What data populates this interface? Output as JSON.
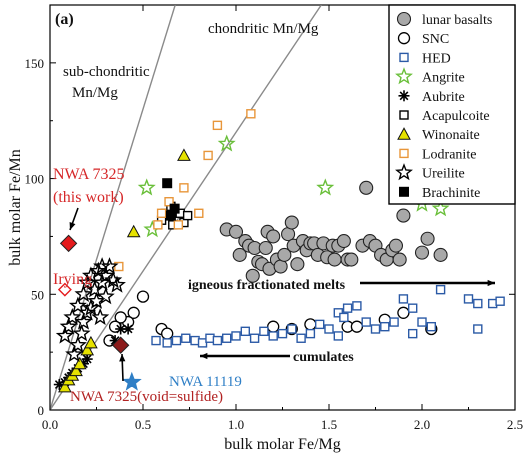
{
  "chart_data": {
    "type": "scatter",
    "panel_label": "(a)",
    "xlabel": "bulk molar Fe/Mg",
    "ylabel": "bulk molar Fe/Mn",
    "xlim": [
      0,
      2.5
    ],
    "ylim": [
      0,
      175
    ],
    "xticks": [
      "0.0",
      "0.5",
      "1.0",
      "1.5",
      "2.0",
      "2.5"
    ],
    "yticks": [
      "0",
      "50",
      "100",
      "150"
    ],
    "grid": false,
    "legend_position": "top-right",
    "reference_lines": [
      {
        "label": "chondritic Mn/Mg",
        "slope": 120
      },
      {
        "label": "sub-chondritic Mn/Mg",
        "slope": 260
      }
    ],
    "annotations": [
      {
        "text": "chondritic Mn/Mg"
      },
      {
        "text": "sub-chondritic"
      },
      {
        "text": "Mn/Mg"
      },
      {
        "text": "NWA 7325"
      },
      {
        "text": "(this work)"
      },
      {
        "text": "Irying"
      },
      {
        "text": "NWA 7325(void=sulfide)"
      },
      {
        "text": "NWA 11119"
      },
      {
        "text": "igneous fractionated melts"
      },
      {
        "text": "cumulates"
      }
    ],
    "series": [
      {
        "name": "lunar basalts",
        "marker": "circle-filled",
        "color": "#a8a8a8",
        "points": [
          [
            0.95,
            78
          ],
          [
            1.0,
            77
          ],
          [
            1.02,
            67
          ],
          [
            1.05,
            73
          ],
          [
            1.07,
            71
          ],
          [
            1.09,
            58
          ],
          [
            1.1,
            70
          ],
          [
            1.12,
            64
          ],
          [
            1.14,
            63
          ],
          [
            1.16,
            70
          ],
          [
            1.17,
            77
          ],
          [
            1.18,
            61
          ],
          [
            1.2,
            75
          ],
          [
            1.22,
            65
          ],
          [
            1.24,
            62
          ],
          [
            1.26,
            67
          ],
          [
            1.28,
            76
          ],
          [
            1.3,
            81
          ],
          [
            1.31,
            71
          ],
          [
            1.33,
            63
          ],
          [
            1.36,
            73
          ],
          [
            1.38,
            69
          ],
          [
            1.4,
            72
          ],
          [
            1.42,
            72
          ],
          [
            1.44,
            67
          ],
          [
            1.47,
            72
          ],
          [
            1.49,
            66
          ],
          [
            1.52,
            71
          ],
          [
            1.53,
            65
          ],
          [
            1.55,
            71
          ],
          [
            1.58,
            73
          ],
          [
            1.6,
            65
          ],
          [
            1.62,
            65
          ],
          [
            1.68,
            71
          ],
          [
            1.7,
            96
          ],
          [
            1.72,
            73
          ],
          [
            1.75,
            71
          ],
          [
            1.78,
            67
          ],
          [
            1.81,
            65
          ],
          [
            1.84,
            69
          ],
          [
            1.86,
            71
          ],
          [
            1.88,
            65
          ],
          [
            1.9,
            84
          ],
          [
            1.93,
            96
          ],
          [
            2.0,
            68
          ],
          [
            2.03,
            74
          ],
          [
            2.1,
            67
          ]
        ]
      },
      {
        "name": "SNC",
        "marker": "circle-open",
        "color": "#000000",
        "points": [
          [
            0.5,
            49
          ],
          [
            0.45,
            42
          ],
          [
            0.42,
            38
          ],
          [
            0.38,
            40
          ],
          [
            0.35,
            36
          ],
          [
            0.32,
            30
          ],
          [
            0.6,
            35
          ],
          [
            0.63,
            33
          ],
          [
            1.2,
            36
          ],
          [
            1.4,
            37
          ],
          [
            1.6,
            36
          ],
          [
            1.8,
            39
          ],
          [
            1.9,
            42
          ],
          [
            2.05,
            35
          ],
          [
            1.65,
            36
          ],
          [
            1.3,
            35
          ]
        ]
      },
      {
        "name": "HED",
        "marker": "square-open",
        "color": "#2b5aa6",
        "points": [
          [
            0.57,
            30
          ],
          [
            0.63,
            29
          ],
          [
            0.68,
            30
          ],
          [
            0.73,
            31
          ],
          [
            0.78,
            30
          ],
          [
            0.82,
            29
          ],
          [
            0.86,
            31
          ],
          [
            0.9,
            30
          ],
          [
            0.95,
            31
          ],
          [
            1.0,
            32
          ],
          [
            1.05,
            34
          ],
          [
            1.1,
            31
          ],
          [
            1.15,
            34
          ],
          [
            1.2,
            32
          ],
          [
            1.25,
            33
          ],
          [
            1.3,
            35
          ],
          [
            1.35,
            31
          ],
          [
            1.4,
            33
          ],
          [
            1.45,
            37
          ],
          [
            1.5,
            35
          ],
          [
            1.55,
            42
          ],
          [
            1.58,
            40
          ],
          [
            1.6,
            44
          ],
          [
            1.65,
            45
          ],
          [
            1.7,
            38
          ],
          [
            1.75,
            35
          ],
          [
            1.8,
            36
          ],
          [
            1.85,
            38
          ],
          [
            1.9,
            48
          ],
          [
            1.95,
            44
          ],
          [
            2.0,
            38
          ],
          [
            2.05,
            36
          ],
          [
            2.1,
            52
          ],
          [
            2.25,
            48
          ],
          [
            2.3,
            46
          ],
          [
            2.38,
            46
          ],
          [
            2.42,
            47
          ],
          [
            2.3,
            35
          ],
          [
            1.95,
            33
          ],
          [
            1.55,
            32
          ]
        ]
      },
      {
        "name": "Angrite",
        "marker": "star-open",
        "color": "#6abf3a",
        "points": [
          [
            0.52,
            96
          ],
          [
            0.55,
            78
          ],
          [
            0.95,
            115
          ],
          [
            1.48,
            96
          ],
          [
            2.0,
            89
          ],
          [
            2.1,
            87
          ]
        ]
      },
      {
        "name": "Aubrite",
        "marker": "asterisk",
        "color": "#000000",
        "points": [
          [
            0.05,
            11
          ],
          [
            0.08,
            12
          ],
          [
            0.1,
            14
          ],
          [
            0.12,
            16
          ],
          [
            0.15,
            18
          ],
          [
            0.18,
            20
          ],
          [
            0.2,
            22
          ],
          [
            0.38,
            35
          ],
          [
            0.42,
            35
          ],
          [
            0.35,
            30
          ]
        ]
      },
      {
        "name": "Acapulcoite",
        "marker": "square-open",
        "color": "#000000",
        "points": [
          [
            0.6,
            82
          ],
          [
            0.62,
            85
          ],
          [
            0.65,
            88
          ],
          [
            0.7,
            85
          ],
          [
            0.72,
            81
          ],
          [
            0.74,
            84
          ],
          [
            0.66,
            80
          ]
        ]
      },
      {
        "name": "Winonaite",
        "marker": "triangle-filled",
        "color": "#e6e200",
        "points": [
          [
            0.08,
            10
          ],
          [
            0.1,
            13
          ],
          [
            0.12,
            15
          ],
          [
            0.14,
            17
          ],
          [
            0.16,
            20
          ],
          [
            0.2,
            26
          ],
          [
            0.22,
            29
          ],
          [
            0.45,
            77
          ],
          [
            0.72,
            110
          ]
        ]
      },
      {
        "name": "Lodranite",
        "marker": "square-open",
        "color": "#e8963a",
        "points": [
          [
            0.37,
            62
          ],
          [
            0.58,
            80
          ],
          [
            0.6,
            85
          ],
          [
            0.64,
            90
          ],
          [
            0.69,
            80
          ],
          [
            0.72,
            96
          ],
          [
            0.8,
            85
          ],
          [
            0.85,
            110
          ],
          [
            0.9,
            123
          ],
          [
            1.08,
            128
          ]
        ]
      },
      {
        "name": "Ureilite",
        "marker": "star-open",
        "color": "#000000",
        "points": [
          [
            0.08,
            32
          ],
          [
            0.1,
            36
          ],
          [
            0.12,
            40
          ],
          [
            0.15,
            45
          ],
          [
            0.18,
            50
          ],
          [
            0.2,
            55
          ],
          [
            0.22,
            58
          ],
          [
            0.24,
            52
          ],
          [
            0.26,
            60
          ],
          [
            0.28,
            55
          ],
          [
            0.3,
            58
          ],
          [
            0.32,
            62
          ],
          [
            0.34,
            56
          ],
          [
            0.36,
            54
          ],
          [
            0.22,
            44
          ],
          [
            0.25,
            47
          ],
          [
            0.18,
            38
          ],
          [
            0.15,
            28
          ],
          [
            0.13,
            24
          ],
          [
            0.17,
            33
          ],
          [
            0.2,
            42
          ],
          [
            0.28,
            62
          ],
          [
            0.3,
            49
          ],
          [
            0.27,
            40
          ]
        ]
      },
      {
        "name": "Brachinite",
        "marker": "square-filled",
        "color": "#000000",
        "points": [
          [
            0.63,
            98
          ],
          [
            0.65,
            84
          ],
          [
            0.67,
            87
          ]
        ]
      },
      {
        "name": "NWA 7325",
        "marker": "diamond-filled",
        "color": "#e41a1c",
        "points": [
          [
            0.1,
            72
          ]
        ]
      },
      {
        "name": "Irying",
        "marker": "diamond-open",
        "color": "#e41a1c",
        "points": [
          [
            0.08,
            52
          ]
        ]
      },
      {
        "name": "NWA 7325(void=sulfide)",
        "marker": "diamond-filled",
        "color": "#8b1a1a",
        "points": [
          [
            0.38,
            28
          ]
        ]
      },
      {
        "name": "NWA 11119",
        "marker": "star-filled",
        "color": "#2f7fc6",
        "points": [
          [
            0.44,
            12
          ]
        ]
      }
    ],
    "legend": [
      {
        "name": "lunar basalts",
        "marker": "circle-filled",
        "color": "#a8a8a8"
      },
      {
        "name": "SNC",
        "marker": "circle-open",
        "color": "#000000"
      },
      {
        "name": "HED",
        "marker": "square-open",
        "color": "#2b5aa6"
      },
      {
        "name": "Angrite",
        "marker": "star-open",
        "color": "#6abf3a"
      },
      {
        "name": "Aubrite",
        "marker": "asterisk",
        "color": "#000000"
      },
      {
        "name": "Acapulcoite",
        "marker": "square-open",
        "color": "#000000"
      },
      {
        "name": "Winonaite",
        "marker": "triangle-filled",
        "color": "#e6e200"
      },
      {
        "name": "Lodranite",
        "marker": "square-open",
        "color": "#e8963a"
      },
      {
        "name": "Ureilite",
        "marker": "star-open",
        "color": "#000000"
      },
      {
        "name": "Brachinite",
        "marker": "square-filled",
        "color": "#000000"
      }
    ]
  }
}
